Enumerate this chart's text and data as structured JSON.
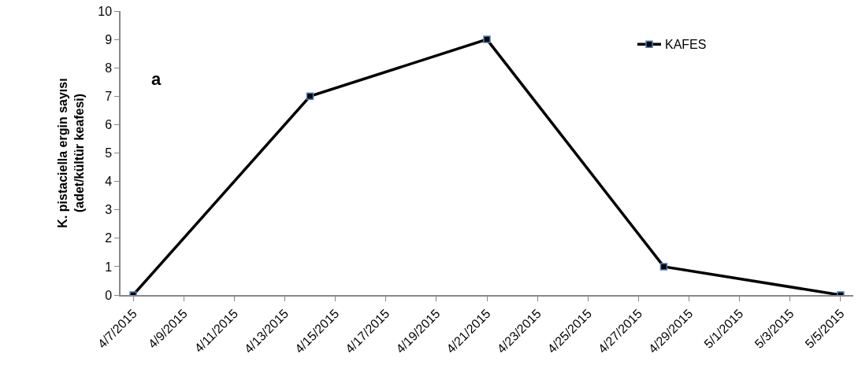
{
  "chart_data": {
    "type": "line",
    "ylabel": "K. pistaciella ergin sayısı\n(adet/kültür keafesi)",
    "annotations": [
      "a"
    ],
    "x": [
      "2015-04-07",
      "2015-04-14",
      "2015-04-21",
      "2015-04-28",
      "2015-05-05"
    ],
    "series": [
      {
        "name": "KAFES",
        "color": "#000000",
        "values": [
          0,
          7,
          9,
          1,
          0
        ]
      }
    ],
    "xlim": [
      "2015-04-06T12:00",
      "2015-05-05T12:00"
    ],
    "xticks": [
      {
        "value": "2015-04-07",
        "label": "4/7/2015"
      },
      {
        "value": "2015-04-09",
        "label": "4/9/2015"
      },
      {
        "value": "2015-04-11",
        "label": "4/11/2015"
      },
      {
        "value": "2015-04-13",
        "label": "4/13/2015"
      },
      {
        "value": "2015-04-15",
        "label": "4/15/2015"
      },
      {
        "value": "2015-04-17",
        "label": "4/17/2015"
      },
      {
        "value": "2015-04-19",
        "label": "4/19/2015"
      },
      {
        "value": "2015-04-21",
        "label": "4/21/2015"
      },
      {
        "value": "2015-04-23",
        "label": "4/23/2015"
      },
      {
        "value": "2015-04-25",
        "label": "4/25/2015"
      },
      {
        "value": "2015-04-27",
        "label": "4/27/2015"
      },
      {
        "value": "2015-04-29",
        "label": "4/29/2015"
      },
      {
        "value": "2015-05-01",
        "label": "5/1/2015"
      },
      {
        "value": "2015-05-03",
        "label": "5/3/2015"
      },
      {
        "value": "2015-05-05",
        "label": "5/5/2015"
      }
    ],
    "ylim": [
      0,
      10
    ],
    "yticks": [
      0,
      1,
      2,
      3,
      4,
      5,
      6,
      7,
      8,
      9,
      10
    ],
    "grid": false,
    "legend": "top right",
    "marker": "square",
    "line_style": "solid"
  }
}
